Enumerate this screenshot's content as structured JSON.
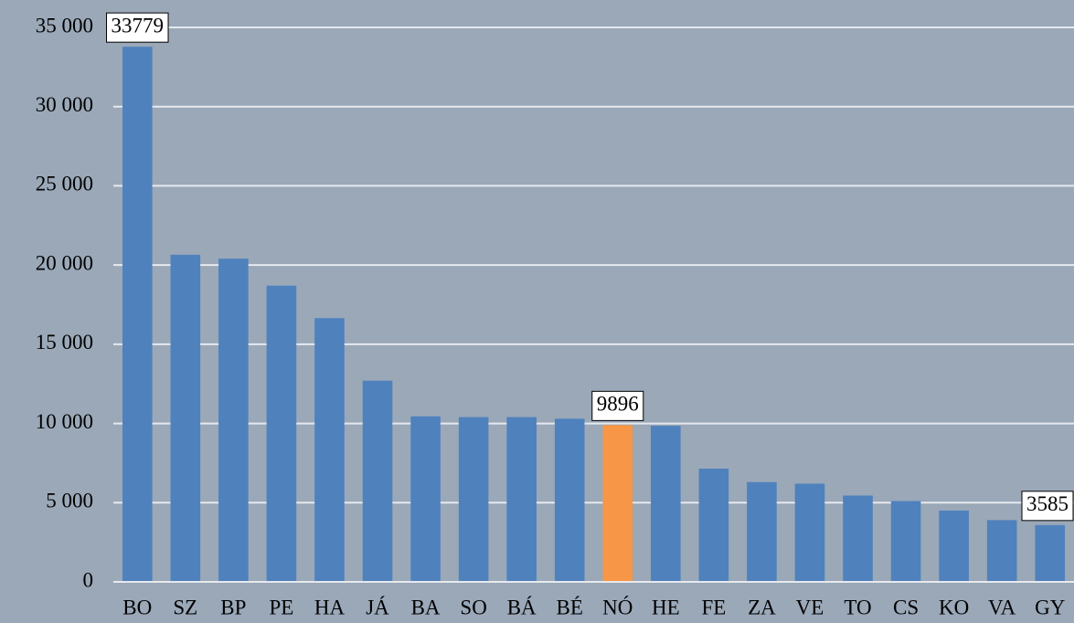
{
  "chart_data": {
    "type": "bar",
    "categories": [
      "BO",
      "SZ",
      "BP",
      "PE",
      "HA",
      "JÁ",
      "BA",
      "SO",
      "BÁ",
      "BÉ",
      "NÓ",
      "HE",
      "FE",
      "ZA",
      "VE",
      "TO",
      "CS",
      "KO",
      "VA",
      "GY"
    ],
    "values": [
      33779,
      20650,
      20400,
      18700,
      16650,
      12700,
      10450,
      10400,
      10400,
      10300,
      9896,
      9850,
      7150,
      6300,
      6200,
      5450,
      5100,
      4500,
      3900,
      3585
    ],
    "value_labels": [
      "33779",
      null,
      null,
      null,
      null,
      null,
      null,
      null,
      null,
      null,
      "9896",
      null,
      null,
      null,
      null,
      null,
      null,
      null,
      null,
      "3585"
    ],
    "colors": [
      "#4f81bd",
      "#4f81bd",
      "#4f81bd",
      "#4f81bd",
      "#4f81bd",
      "#4f81bd",
      "#4f81bd",
      "#4f81bd",
      "#4f81bd",
      "#4f81bd",
      "#f79646",
      "#4f81bd",
      "#4f81bd",
      "#4f81bd",
      "#4f81bd",
      "#4f81bd",
      "#4f81bd",
      "#4f81bd",
      "#4f81bd",
      "#4f81bd"
    ],
    "ylim": [
      0,
      35000
    ],
    "yticks": [
      0,
      {
        "value": 5000,
        "label": "5 000"
      },
      {
        "value": 10000,
        "label": "10 000"
      },
      {
        "value": 15000,
        "label": "15 000"
      },
      {
        "value": 20000,
        "label": "20 000"
      },
      {
        "value": 25000,
        "label": "25 000"
      },
      {
        "value": 30000,
        "label": "30 000"
      },
      {
        "value": 35000,
        "label": "35 000"
      }
    ],
    "grid": true
  }
}
